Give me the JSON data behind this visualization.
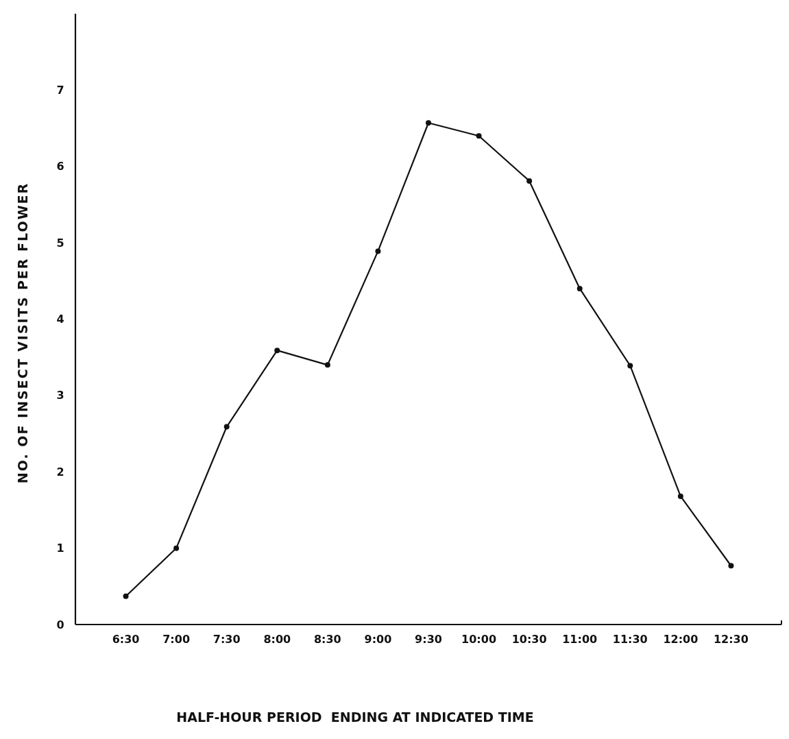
{
  "chart_data": {
    "type": "line",
    "xlabel": "HALF-HOUR PERIOD  ENDING AT INDICATED TIME",
    "ylabel": "NO. OF INSECT VISITS PER FLOWER",
    "categories": [
      "6:30",
      "7:00",
      "7:30",
      "8:00",
      "8:30",
      "9:00",
      "9:30",
      "10:00",
      "10:30",
      "11:00",
      "11:30",
      "12:00",
      "12:30"
    ],
    "series": [
      {
        "color": "#111111",
        "values": [
          0.37,
          1.0,
          2.59,
          3.59,
          3.4,
          4.89,
          6.57,
          6.4,
          5.81,
          4.4,
          3.39,
          1.68,
          0.77
        ]
      }
    ],
    "ylim": [
      0,
      8
    ],
    "yticks": [
      0,
      1,
      2,
      3,
      4,
      5,
      6,
      7
    ],
    "marker": "circle",
    "line_style": "solid"
  }
}
